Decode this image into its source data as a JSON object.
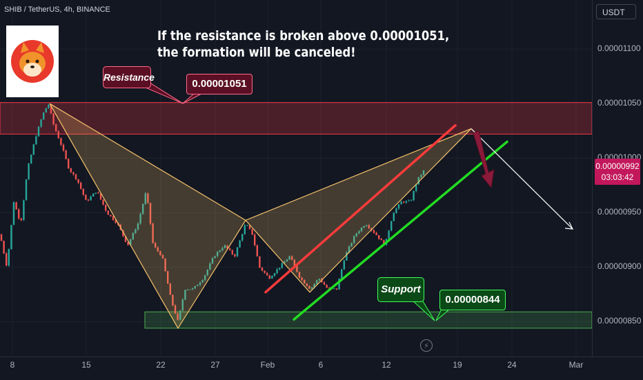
{
  "symbol_line": "SHIB / TetherUS, 4h, BINANCE",
  "currency": "USDT",
  "headline": {
    "line1": "If the resistance is broken above 0.00001051,",
    "line2": "the formation will be canceled!"
  },
  "labels": {
    "resistance": "Resistance",
    "resistance_price": "0.00001051",
    "support": "Support",
    "support_price": "0.00000844"
  },
  "current": {
    "price": "0.00000992",
    "countdown": "03:03:42",
    "color": "#c2185b"
  },
  "colors": {
    "background": "#131722",
    "up": "#26a69a",
    "down": "#ef5350",
    "resistance_zone": "#f23645",
    "support_zone": "#4caf50",
    "pattern": "#f5c26b",
    "channel_red": "#ff3b3b",
    "channel_green": "#22dd22",
    "projection": "#ffffff",
    "reversal_arrow": "#8b1a3a"
  },
  "icons": {
    "logo": "shiba-inu-logo",
    "replay": "lightning-icon"
  },
  "chart_data": {
    "type": "candlestick",
    "title": "SHIB / TetherUS, 4h, BINANCE",
    "x_ticks": [
      "8",
      "15",
      "22",
      "27",
      "Feb",
      "6",
      "12",
      "19",
      "24",
      "Mar"
    ],
    "y_ticks": [
      "0.00001100",
      "0.00001050",
      "0.00001000",
      "0.00000950",
      "0.00000900",
      "0.00000850"
    ],
    "ylim": [
      8.18e-06,
      1.145e-05
    ],
    "resistance_zone": [
      1.022e-05,
      1.051e-05
    ],
    "support_zone": [
      8.44e-06,
      8.59e-06
    ],
    "price_path": [
      [
        0,
        9.3e-06
      ],
      [
        10,
        9e-06
      ],
      [
        20,
        9.6e-06
      ],
      [
        30,
        9.4e-06
      ],
      [
        40,
        9.9e-06
      ],
      [
        52,
        1.02e-05
      ],
      [
        62,
        1.04e-05
      ],
      [
        70,
        1.05e-05
      ],
      [
        78,
        1.03e-05
      ],
      [
        90,
        1.01e-05
      ],
      [
        100,
        9.9e-06
      ],
      [
        112,
        9.8e-06
      ],
      [
        125,
        9.6e-06
      ],
      [
        140,
        9.7e-06
      ],
      [
        155,
        9.5e-06
      ],
      [
        170,
        9.4e-06
      ],
      [
        185,
        9.2e-06
      ],
      [
        200,
        9.4e-06
      ],
      [
        212,
        9.7e-06
      ],
      [
        222,
        9.2e-06
      ],
      [
        235,
        9.1e-06
      ],
      [
        248,
        8.7e-06
      ],
      [
        258,
        8.5e-06
      ],
      [
        268,
        8.8e-06
      ],
      [
        280,
        8.8e-06
      ],
      [
        295,
        8.9e-06
      ],
      [
        310,
        9.1e-06
      ],
      [
        325,
        9.2e-06
      ],
      [
        340,
        9.1e-06
      ],
      [
        356,
        9.4e-06
      ],
      [
        366,
        9.3e-06
      ],
      [
        376,
        9e-06
      ],
      [
        390,
        8.9e-06
      ],
      [
        405,
        9e-06
      ],
      [
        420,
        9.1e-06
      ],
      [
        435,
        8.9e-06
      ],
      [
        450,
        8.8e-06
      ],
      [
        462,
        8.9e-06
      ],
      [
        475,
        8.8e-06
      ],
      [
        488,
        8.8e-06
      ],
      [
        500,
        9.1e-06
      ],
      [
        515,
        9.3e-06
      ],
      [
        530,
        9.4e-06
      ],
      [
        545,
        9.3e-06
      ],
      [
        558,
        9.2e-06
      ],
      [
        570,
        9.5e-06
      ],
      [
        582,
        9.6e-06
      ],
      [
        595,
        9.6e-06
      ],
      [
        605,
        9.8e-06
      ],
      [
        616,
        9.9e-06
      ]
    ],
    "pattern_points": [
      [
        72,
        1.05e-05
      ],
      [
        258,
        8.44e-06
      ],
      [
        356,
        9.43e-06
      ],
      [
        449,
        8.77e-06
      ],
      [
        683,
        1.027e-05
      ]
    ],
    "red_channel": [
      [
        385,
        8.77e-06
      ],
      [
        660,
        1.03e-05
      ]
    ],
    "green_channel": [
      [
        426,
        8.52e-06
      ],
      [
        735,
        1.015e-05
      ]
    ],
    "projection": [
      [
        683,
        1.027e-05
      ],
      [
        830,
        9.35e-06
      ]
    ]
  }
}
